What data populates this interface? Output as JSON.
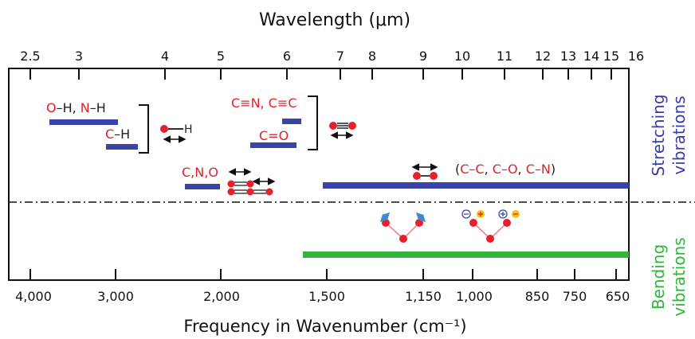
{
  "top_axis": {
    "title": "Wavelength (μm)",
    "ticks": [
      "2.5",
      "3",
      "4",
      "5",
      "6",
      "7",
      "8",
      "9",
      "10",
      "11",
      "12",
      "13",
      "14",
      "15",
      "16"
    ]
  },
  "bottom_axis": {
    "title": "Frequency in Wavenumber (cm⁻¹)",
    "ticks": [
      "4,000",
      "3,000",
      "2,000",
      "1,500",
      "1,150",
      "1,000",
      "850",
      "750",
      "650"
    ]
  },
  "regions": {
    "stretching": [
      "Stretching",
      "vibrations"
    ],
    "bending": [
      "Bending",
      "vibrations"
    ]
  },
  "labels": {
    "oh": "O",
    "oh_dash": "–H, ",
    "nh": "N",
    "nh_dash": "–H",
    "ch": "C",
    "ch_dash": "–H",
    "cn3": "C≡N,",
    "cc3": "C≡C",
    "co2": "C=O",
    "cno": "C,N,O",
    "single_open": "(",
    "cc1": "C–C",
    "sep1": ", ",
    "co1": "C–O",
    "sep2": ", ",
    "cn1": "C–N",
    "single_close": ")",
    "h_atom": "H"
  },
  "colors": {
    "stretch_bar": "#3a44a8",
    "bend_bar": "#36b23e",
    "atom": "#e6202a",
    "arrow_blue": "#3a8ad6",
    "charge_yellow": "#f2c21b"
  }
}
